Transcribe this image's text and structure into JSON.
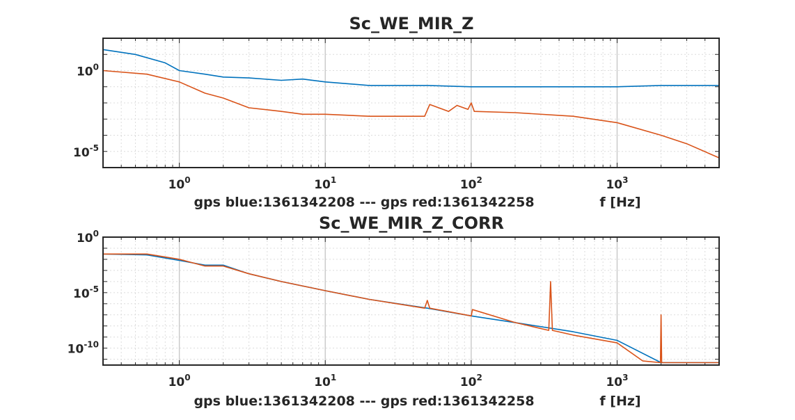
{
  "colors": {
    "blue": "#0072BD",
    "red": "#D95319",
    "axis": "#262626",
    "grid": "#dcdcdc"
  },
  "chart_data": [
    {
      "type": "line",
      "title": "Sc_WE_MIR_Z",
      "xlabel": "gps blue:1361342208 --- gps red:1361342258",
      "xunit_label": "f [Hz]",
      "xscale": "log",
      "yscale": "log",
      "xlim": [
        0.3,
        5000
      ],
      "ylim": [
        1e-06,
        100
      ],
      "grid": true,
      "x_ticks": [
        {
          "base": "10",
          "exp": "0",
          "value": 1
        },
        {
          "base": "10",
          "exp": "1",
          "value": 10
        },
        {
          "base": "10",
          "exp": "2",
          "value": 100
        },
        {
          "base": "10",
          "exp": "3",
          "value": 1000
        }
      ],
      "y_ticks": [
        {
          "base": "10",
          "exp": "-5",
          "value": 1e-05
        },
        {
          "base": "10",
          "exp": "0",
          "value": 1
        }
      ],
      "series": [
        {
          "color": "blue",
          "x": [
            0.3,
            0.5,
            0.8,
            1.0,
            1.5,
            2,
            3,
            5,
            7,
            10,
            20,
            50,
            100,
            200,
            500,
            1000,
            2000,
            5000
          ],
          "y": [
            20,
            10,
            3,
            1.0,
            0.6,
            0.4,
            0.35,
            0.25,
            0.3,
            0.2,
            0.12,
            0.12,
            0.1,
            0.1,
            0.1,
            0.1,
            0.12,
            0.12
          ]
        },
        {
          "color": "red",
          "x": [
            0.3,
            0.6,
            1.0,
            1.5,
            2,
            3,
            5,
            7,
            10,
            20,
            48,
            52,
            70,
            80,
            95,
            100,
            105,
            200,
            500,
            1000,
            2000,
            3000,
            5000
          ],
          "y": [
            1.0,
            0.6,
            0.2,
            0.04,
            0.02,
            0.005,
            0.003,
            0.002,
            0.002,
            0.0015,
            0.0015,
            0.008,
            0.003,
            0.007,
            0.004,
            0.01,
            0.003,
            0.0025,
            0.0015,
            0.0006,
            0.0001,
            3e-05,
            4e-06
          ]
        }
      ]
    },
    {
      "type": "line",
      "title": "Sc_WE_MIR_Z_CORR",
      "xlabel": "gps blue:1361342208 --- gps red:1361342258",
      "xunit_label": "f [Hz]",
      "xscale": "log",
      "yscale": "log",
      "xlim": [
        0.3,
        5000
      ],
      "ylim": [
        3e-12,
        1
      ],
      "grid": true,
      "x_ticks": [
        {
          "base": "10",
          "exp": "0",
          "value": 1
        },
        {
          "base": "10",
          "exp": "1",
          "value": 10
        },
        {
          "base": "10",
          "exp": "2",
          "value": 100
        },
        {
          "base": "10",
          "exp": "3",
          "value": 1000
        }
      ],
      "y_ticks": [
        {
          "base": "10",
          "exp": "-10",
          "value": 1e-10
        },
        {
          "base": "10",
          "exp": "-5",
          "value": 1e-05
        },
        {
          "base": "10",
          "exp": "0",
          "value": 1
        }
      ],
      "series": [
        {
          "color": "blue",
          "x": [
            0.3,
            0.6,
            1.0,
            1.5,
            2,
            3,
            5,
            10,
            20,
            50,
            100,
            200,
            500,
            1000,
            2000,
            5000
          ],
          "y": [
            0.03,
            0.025,
            0.008,
            0.003,
            0.003,
            0.0005,
            0.0001,
            1.5e-05,
            2.5e-06,
            4e-07,
            8e-08,
            2e-08,
            3e-09,
            5e-10,
            5e-12,
            5e-12
          ]
        },
        {
          "color": "red",
          "x": [
            0.3,
            0.6,
            1.0,
            1.5,
            2,
            3,
            5,
            10,
            20,
            48,
            50,
            52,
            100,
            102,
            200,
            340,
            350,
            360,
            500,
            1000,
            1500,
            1980,
            2000,
            2020,
            5000
          ],
          "y": [
            0.03,
            0.03,
            0.01,
            0.0025,
            0.0025,
            0.0005,
            0.0001,
            1.5e-05,
            2.5e-06,
            4e-07,
            2e-06,
            4e-07,
            8e-08,
            3e-07,
            2e-08,
            4e-09,
            0.0001,
            4e-09,
            1.5e-09,
            3e-10,
            7e-12,
            5e-12,
            1e-07,
            5e-12,
            5e-12
          ]
        }
      ]
    }
  ]
}
